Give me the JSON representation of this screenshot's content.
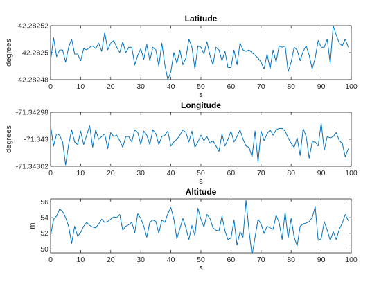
{
  "figure": {
    "background": "#ffffff",
    "line_color": "#0072BD"
  },
  "chart_data": [
    {
      "type": "line",
      "title": "Latitude",
      "xlabel": "s",
      "ylabel": "degrees",
      "xlim": [
        0,
        100
      ],
      "ylim": [
        42.28248,
        42.28252
      ],
      "xticks": [
        0,
        10,
        20,
        30,
        40,
        50,
        60,
        70,
        80,
        90,
        100
      ],
      "xtick_labels": [
        "0",
        "10",
        "20",
        "30",
        "40",
        "50",
        "60",
        "70",
        "80",
        "90",
        "100"
      ],
      "yticks": [
        42.28248,
        42.2825,
        42.28252
      ],
      "ytick_labels": [
        "42.28248",
        "42.2825",
        "42.28252"
      ],
      "grid": false,
      "series": [
        {
          "x": [
            0,
            1,
            2,
            3,
            4,
            5,
            6,
            7,
            8,
            9,
            10,
            11,
            12,
            13,
            14,
            15,
            16,
            17,
            18,
            19,
            20,
            21,
            22,
            23,
            24,
            25,
            26,
            27,
            28,
            29,
            30,
            31,
            32,
            33,
            34,
            35,
            36,
            37,
            38,
            39,
            40,
            41,
            42,
            43,
            44,
            45,
            46,
            47,
            48,
            49,
            50,
            51,
            52,
            53,
            54,
            55,
            56,
            57,
            58,
            59,
            60,
            61,
            62,
            63,
            64,
            65,
            66,
            67,
            68,
            69,
            70,
            71,
            72,
            73,
            74,
            75,
            76,
            77,
            78,
            79,
            80,
            81,
            82,
            83,
            84,
            85,
            86,
            87,
            88,
            89,
            90,
            91,
            92,
            93,
            94,
            95,
            96,
            97,
            98,
            99
          ],
          "y": [
            42.282494,
            42.282511,
            42.282497,
            42.282502,
            42.282502,
            42.282493,
            42.282504,
            42.28251,
            42.282499,
            42.282499,
            42.282494,
            42.282503,
            42.282502,
            42.282504,
            42.282505,
            42.282503,
            42.282507,
            42.282501,
            42.282515,
            42.282502,
            42.282507,
            42.282509,
            42.282504,
            42.2825,
            42.282508,
            42.2825,
            42.282504,
            42.282504,
            42.282491,
            42.282498,
            42.282503,
            42.282495,
            42.282506,
            42.282494,
            42.282504,
            42.282502,
            42.28249,
            42.282507,
            42.282491,
            42.28248,
            42.282486,
            42.2825,
            42.282492,
            42.282502,
            42.282491,
            42.282496,
            42.28251,
            42.282504,
            42.282488,
            42.282505,
            42.282504,
            42.282499,
            42.282508,
            42.282498,
            42.282491,
            42.282504,
            42.282502,
            42.282494,
            42.282501,
            42.282489,
            42.282489,
            42.282502,
            42.282491,
            42.282507,
            42.282502,
            42.282501,
            42.282502,
            42.2825,
            42.282498,
            42.282496,
            42.282493,
            42.282488,
            42.282499,
            42.282488,
            42.282502,
            42.282493,
            42.282505,
            42.282504,
            42.282505,
            42.282486,
            42.282493,
            42.282504,
            42.282502,
            42.282494,
            42.282501,
            42.282505,
            42.282498,
            42.282488,
            42.282496,
            42.282509,
            42.282504,
            42.282504,
            42.28251,
            42.282492,
            42.28252,
            42.282513,
            42.282507,
            42.282505,
            42.28251,
            42.282504
          ]
        }
      ]
    },
    {
      "type": "line",
      "title": "Longitude",
      "xlabel": "s",
      "ylabel": "degrees",
      "xlim": [
        0,
        100
      ],
      "ylim": [
        -71.34302,
        -71.34298
      ],
      "xticks": [
        0,
        10,
        20,
        30,
        40,
        50,
        60,
        70,
        80,
        90,
        100
      ],
      "xtick_labels": [
        "0",
        "10",
        "20",
        "30",
        "40",
        "50",
        "60",
        "70",
        "80",
        "90",
        "100"
      ],
      "yticks": [
        -71.34302,
        -71.343,
        -71.34298
      ],
      "ytick_labels": [
        "-71.34302",
        "-71.343",
        "-71.34298"
      ],
      "grid": false,
      "series": [
        {
          "x": [
            0,
            1,
            2,
            3,
            4,
            5,
            6,
            7,
            8,
            9,
            10,
            11,
            12,
            13,
            14,
            15,
            16,
            17,
            18,
            19,
            20,
            21,
            22,
            23,
            24,
            25,
            26,
            27,
            28,
            29,
            30,
            31,
            32,
            33,
            34,
            35,
            36,
            37,
            38,
            39,
            40,
            41,
            42,
            43,
            44,
            45,
            46,
            47,
            48,
            49,
            50,
            51,
            52,
            53,
            54,
            55,
            56,
            57,
            58,
            59,
            60,
            61,
            62,
            63,
            64,
            65,
            66,
            67,
            68,
            69,
            70,
            71,
            72,
            73,
            74,
            75,
            76,
            77,
            78,
            79,
            80,
            81,
            82,
            83,
            84,
            85,
            86,
            87,
            88,
            89,
            90,
            91,
            92,
            93,
            94,
            95,
            96,
            97,
            98,
            99
          ],
          "y": [
            -71.34299,
            -71.343005,
            -71.342996,
            -71.342997,
            -71.343002,
            -71.343019,
            -71.343004,
            -71.342993,
            -71.343002,
            -71.343004,
            -71.342994,
            -71.343004,
            -71.342997,
            -71.34299,
            -71.343006,
            -71.342993,
            -71.343,
            -71.342998,
            -71.342996,
            -71.343007,
            -71.342995,
            -71.342998,
            -71.342997,
            -71.343001,
            -71.343006,
            -71.342998,
            -71.342998,
            -71.343002,
            -71.342993,
            -71.342995,
            -71.343004,
            -71.342994,
            -71.342997,
            -71.343004,
            -71.342993,
            -71.342996,
            -71.343004,
            -71.342998,
            -71.342997,
            -71.342994,
            -71.343005,
            -71.343002,
            -71.343,
            -71.342997,
            -71.342993,
            -71.342995,
            -71.343002,
            -71.342994,
            -71.343006,
            -71.343002,
            -71.342997,
            -71.343001,
            -71.342998,
            -71.343003,
            -71.343001,
            -71.343005,
            -71.343009,
            -71.342996,
            -71.343005,
            -71.343,
            -71.342994,
            -71.343002,
            -71.342998,
            -71.342993,
            -71.343,
            -71.343005,
            -71.343006,
            -71.343013,
            -71.342994,
            -71.343017,
            -71.342994,
            -71.343001,
            -71.342996,
            -71.342993,
            -71.342997,
            -71.342993,
            -71.342992,
            -71.342992,
            -71.342994,
            -71.342999,
            -71.343003,
            -71.343006,
            -71.342999,
            -71.343012,
            -71.342992,
            -71.342998,
            -71.343014,
            -71.343002,
            -71.343002,
            -71.343005,
            -71.342988,
            -71.343008,
            -71.342998,
            -71.342999,
            -71.342998,
            -71.342995,
            -71.343001,
            -71.343003,
            -71.343013,
            -71.343007
          ]
        }
      ]
    },
    {
      "type": "line",
      "title": "Altitude",
      "xlabel": "s",
      "ylabel": "m",
      "xlim": [
        0,
        100
      ],
      "ylim": [
        49.5,
        56.4
      ],
      "xticks": [
        0,
        10,
        20,
        30,
        40,
        50,
        60,
        70,
        80,
        90,
        100
      ],
      "xtick_labels": [
        "0",
        "10",
        "20",
        "30",
        "40",
        "50",
        "60",
        "70",
        "80",
        "90",
        "100"
      ],
      "yticks": [
        50,
        52,
        54,
        56
      ],
      "ytick_labels": [
        "50",
        "52",
        "54",
        "56"
      ],
      "grid": false,
      "series": [
        {
          "x": [
            0,
            1,
            2,
            3,
            4,
            5,
            6,
            7,
            8,
            9,
            10,
            11,
            12,
            13,
            14,
            15,
            16,
            17,
            18,
            19,
            20,
            21,
            22,
            23,
            24,
            25,
            26,
            27,
            28,
            29,
            30,
            31,
            32,
            33,
            34,
            35,
            36,
            37,
            38,
            39,
            40,
            41,
            42,
            43,
            44,
            45,
            46,
            47,
            48,
            49,
            50,
            51,
            52,
            53,
            54,
            55,
            56,
            57,
            58,
            59,
            60,
            61,
            62,
            63,
            64,
            65,
            66,
            67,
            68,
            69,
            70,
            71,
            72,
            73,
            74,
            75,
            76,
            77,
            78,
            79,
            80,
            81,
            82,
            83,
            84,
            85,
            86,
            87,
            88,
            89,
            90,
            91,
            92,
            93,
            94,
            95,
            96,
            97,
            98,
            99
          ],
          "y": [
            51.7,
            53.8,
            54.2,
            55.1,
            54.8,
            54.0,
            52.9,
            50.7,
            52.9,
            51.6,
            52.1,
            52.9,
            53.4,
            53.0,
            52.8,
            52.7,
            53.2,
            53.8,
            53.4,
            53.5,
            53.8,
            54.1,
            54.0,
            54.4,
            52.4,
            52.9,
            53.1,
            53.4,
            52.1,
            54.5,
            53.9,
            52.9,
            51.5,
            53.4,
            53.7,
            53.5,
            52.0,
            53.7,
            53.4,
            54.5,
            55.3,
            53.8,
            51.3,
            52.6,
            53.9,
            52.7,
            51.2,
            53.0,
            51.7,
            55.2,
            53.8,
            52.8,
            54.4,
            53.9,
            52.7,
            52.4,
            52.3,
            54.2,
            52.3,
            51.2,
            51.4,
            53.7,
            50.5,
            52.2,
            51.5,
            56.2,
            52.3,
            49.2,
            51.5,
            53.8,
            53.2,
            52.0,
            52.9,
            52.7,
            52.5,
            54.3,
            53.4,
            51.2,
            54.7,
            51.4,
            53.9,
            51.5,
            50.4,
            52.9,
            53.2,
            53.3,
            53.5,
            54.0,
            55.4,
            51.1,
            51.3,
            53.5,
            52.4,
            51.1,
            52.2,
            51.2,
            52.5,
            53.3,
            54.4,
            53.6
          ]
        }
      ]
    }
  ]
}
